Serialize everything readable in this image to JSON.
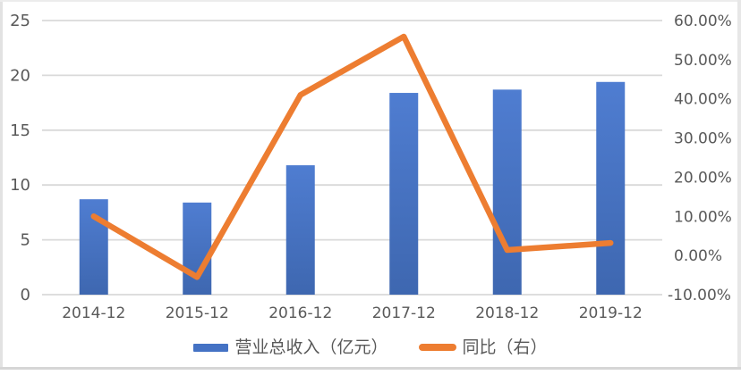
{
  "colors": {
    "bar": "#4472C4",
    "bar_gradient_top": "#4F7DD1",
    "bar_gradient_bottom": "#3E67B0",
    "line": "#ED7D31",
    "grid": "#D9D9D9",
    "text": "#595959",
    "background": "#FFFFFF",
    "border": "#E2E2E2",
    "divider": "#D6D6D6"
  },
  "chart_data": {
    "type": "bar",
    "subtype": "bar+line combo, dual axis",
    "categories": [
      "2014-12",
      "2015-12",
      "2016-12",
      "2017-12",
      "2018-12",
      "2019-12"
    ],
    "series": [
      {
        "name": "营业总收入（亿元）",
        "type": "bar",
        "axis": "left",
        "values": [
          8.7,
          8.4,
          11.8,
          18.4,
          18.7,
          19.4
        ]
      },
      {
        "name": "同比（右）",
        "type": "line",
        "axis": "right",
        "values": [
          10.0,
          -5.5,
          41.0,
          55.9,
          1.4,
          3.2
        ]
      }
    ],
    "left_axis": {
      "min": 0,
      "max": 25,
      "step": 5,
      "ticks": [
        {
          "v": 0,
          "label": "0"
        },
        {
          "v": 5,
          "label": "5"
        },
        {
          "v": 10,
          "label": "10"
        },
        {
          "v": 15,
          "label": "15"
        },
        {
          "v": 20,
          "label": "20"
        },
        {
          "v": 25,
          "label": "25"
        }
      ]
    },
    "right_axis": {
      "min": -10,
      "max": 60,
      "step": 10,
      "ticks": [
        {
          "v": -10,
          "label": "-10.00%"
        },
        {
          "v": 0,
          "label": "0.00%"
        },
        {
          "v": 10,
          "label": "10.00%"
        },
        {
          "v": 20,
          "label": "20.00%"
        },
        {
          "v": 30,
          "label": "30.00%"
        },
        {
          "v": 40,
          "label": "40.00%"
        },
        {
          "v": 50,
          "label": "50.00%"
        },
        {
          "v": 60,
          "label": "60.00%"
        }
      ]
    },
    "title": "",
    "xlabel": "",
    "ylabel": "",
    "grid": true,
    "legend_position": "bottom"
  }
}
